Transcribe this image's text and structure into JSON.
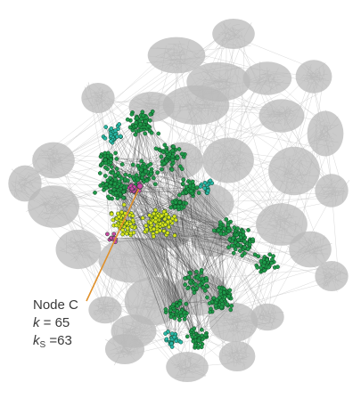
{
  "annotation": {
    "node_label": "Node C",
    "k_symbol": "k",
    "k_relation": " = 65",
    "ks_symbol": "k",
    "ks_subscript": "S",
    "ks_relation": " =63"
  },
  "colors": {
    "background": "#ffffff",
    "background_network": "#b9b9b9",
    "module_green": "#1f9a4a",
    "module_green_dark": "#0c3a1c",
    "module_cyan": "#29b7a8",
    "module_yellow": "#d6e21c",
    "module_magenta": "#c84aa3",
    "pointer_line": "#e0902a",
    "edges": "#2d2d2d"
  }
}
